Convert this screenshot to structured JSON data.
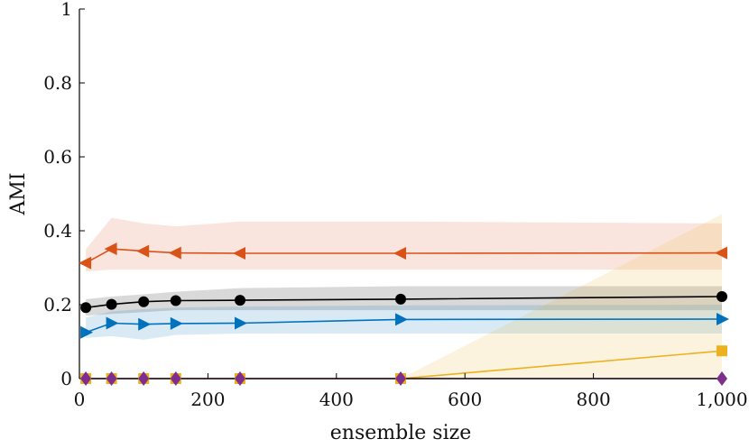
{
  "chart_data": {
    "type": "line",
    "title": "",
    "xlabel": "ensemble size",
    "ylabel": "AMI",
    "xlim": [
      0,
      1000
    ],
    "ylim": [
      0,
      1
    ],
    "xticks": [
      0,
      200,
      400,
      600,
      800,
      1000
    ],
    "xtick_labels": [
      "0",
      "200",
      "400",
      "600",
      "800",
      "1,000"
    ],
    "yticks": [
      0,
      0.2,
      0.4,
      0.6,
      0.8,
      1
    ],
    "ytick_labels": [
      "0",
      "0.2",
      "0.4",
      "0.6",
      "0.8",
      "1"
    ],
    "grid": false,
    "legend": "none",
    "x": [
      10,
      50,
      100,
      150,
      250,
      500,
      1000
    ],
    "series": [
      {
        "marker": "triangle-left",
        "color": "#D95319",
        "values": [
          0.313,
          0.351,
          0.345,
          0.34,
          0.339,
          0.339,
          0.34
        ],
        "band_lower": [
          0.29,
          0.295,
          0.295,
          0.295,
          0.295,
          0.295,
          0.295
        ],
        "band_upper": [
          0.35,
          0.435,
          0.42,
          0.412,
          0.425,
          0.425,
          0.42
        ]
      },
      {
        "marker": "circle",
        "color": "#000000",
        "values": [
          0.192,
          0.201,
          0.208,
          0.211,
          0.212,
          0.215,
          0.222
        ],
        "band_lower": [
          0.17,
          0.175,
          0.18,
          0.185,
          0.185,
          0.185,
          0.185
        ],
        "band_upper": [
          0.215,
          0.222,
          0.228,
          0.235,
          0.245,
          0.25,
          0.25
        ]
      },
      {
        "marker": "triangle-right",
        "color": "#0072BD",
        "values": [
          0.125,
          0.15,
          0.147,
          0.149,
          0.15,
          0.16,
          0.161
        ],
        "band_lower": [
          0.11,
          0.115,
          0.105,
          0.118,
          0.122,
          0.122,
          0.122
        ],
        "band_upper": [
          0.165,
          0.182,
          0.188,
          0.192,
          0.195,
          0.198,
          0.2
        ]
      },
      {
        "marker": "square",
        "color": "#EDB120",
        "values": [
          0,
          0,
          0,
          0,
          0,
          0,
          0.075
        ],
        "band_lower": [
          0,
          0,
          0,
          0,
          0,
          0,
          0
        ],
        "band_upper": [
          0,
          0,
          0,
          0,
          0,
          0,
          0.445
        ]
      },
      {
        "marker": "diamond",
        "color": "#7E2F8E",
        "values": [
          0,
          0,
          0,
          0,
          0,
          0,
          0
        ],
        "band_lower": [
          0,
          0,
          0,
          0,
          0,
          0,
          0
        ],
        "band_upper": [
          0,
          0,
          0,
          0,
          0,
          0,
          0
        ]
      }
    ]
  }
}
